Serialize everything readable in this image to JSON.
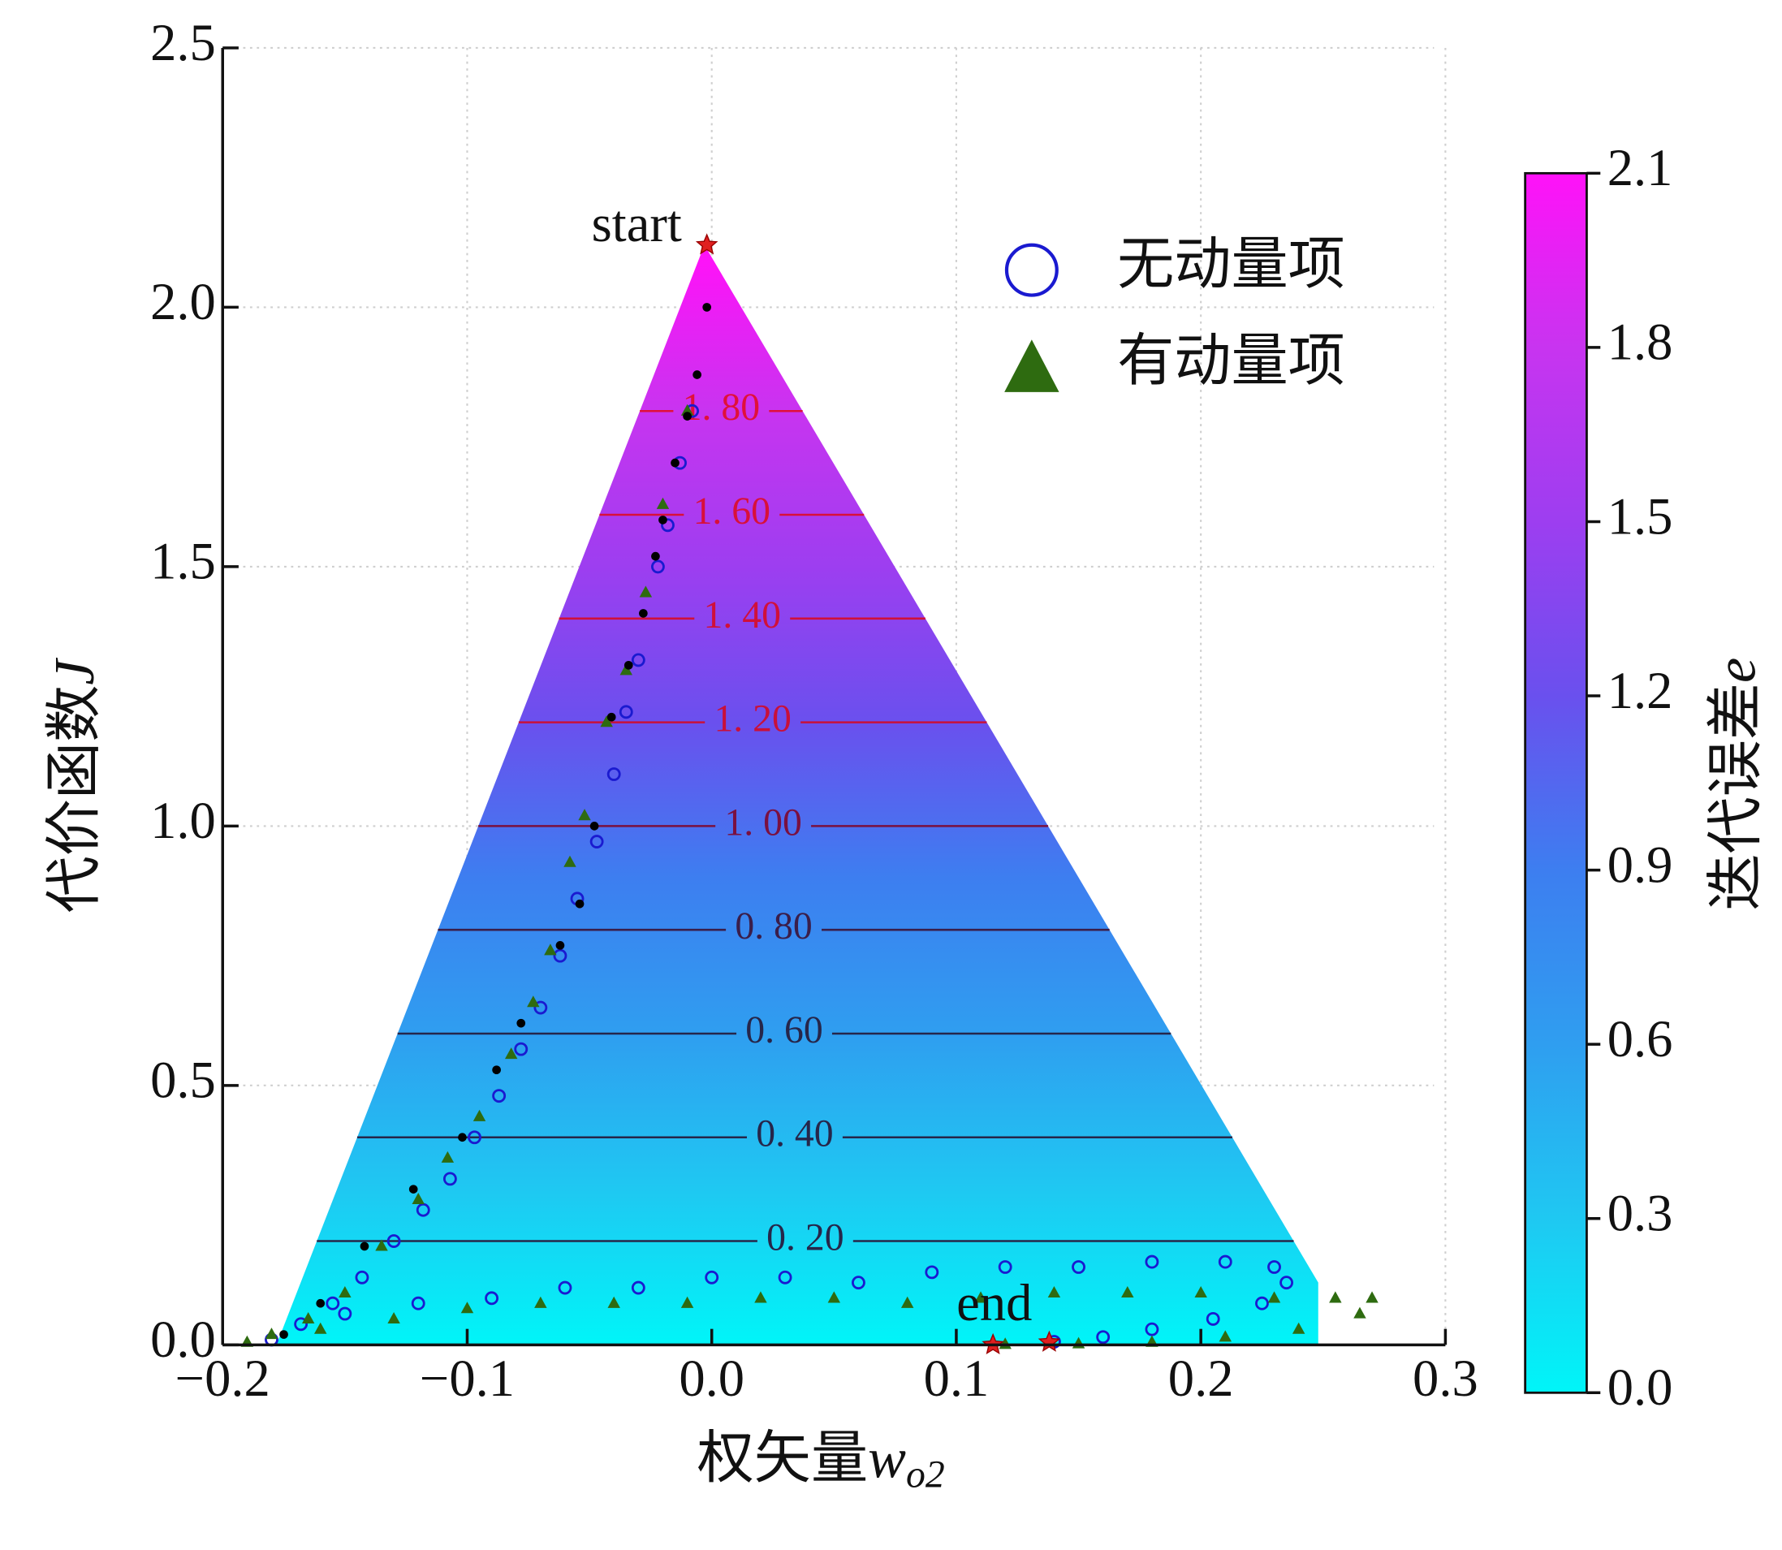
{
  "chart_data": {
    "type": "contour-trajectory",
    "xlabel": {
      "text": "权矢量",
      "var": "w",
      "sub": "o2"
    },
    "ylabel": {
      "text": "代价函数",
      "var": "J"
    },
    "xlim": [
      -0.2,
      0.3
    ],
    "xticks": [
      {
        "value": -0.2,
        "label": "−0.2"
      },
      {
        "value": -0.1,
        "label": "−0.1"
      },
      {
        "value": 0,
        "label": "0.0"
      },
      0.1,
      0.2,
      0.3
    ],
    "ylim": [
      0,
      2.5
    ],
    "yticks": [
      {
        "value": 0,
        "label": "0.0"
      },
      0.5,
      {
        "value": 1,
        "label": "1.0"
      },
      1.5,
      {
        "value": 2,
        "label": "2.0"
      },
      2.5
    ],
    "grid": true,
    "legend": "upper right",
    "surface": {
      "x": [
        -0.003,
        0.248,
        0.248,
        -0.178
      ],
      "y": [
        2.12,
        0.12,
        0,
        0
      ]
    },
    "contour_levels": [
      {
        "value": 0.2,
        "label": "0. 20",
        "color": "#26264a"
      },
      {
        "value": 0.4,
        "label": "0. 40",
        "color": "#26264a"
      },
      {
        "value": 0.6,
        "label": "0. 60",
        "color": "#26264a"
      },
      {
        "value": 0.8,
        "label": "0. 80",
        "color": "#3a1e4a"
      },
      {
        "value": 1.0,
        "label": "1. 00",
        "color": "#7a1040"
      },
      {
        "value": 1.2,
        "label": "1. 20",
        "color": "#c8103a"
      },
      {
        "value": 1.4,
        "label": "1. 40",
        "color": "#d0103a"
      },
      {
        "value": 1.6,
        "label": "1. 60",
        "color": "#d8103a"
      },
      {
        "value": 1.8,
        "label": "1. 80",
        "color": "#e0103a"
      }
    ],
    "colorbar": {
      "label": {
        "text": "迭代误差",
        "var": "e"
      },
      "lim": [
        0,
        2.1
      ],
      "ticks": [
        {
          "value": 0,
          "label": "0.0"
        },
        0.3,
        0.6,
        0.9,
        1.2,
        1.5,
        1.8,
        2.1
      ],
      "colormap": [
        "#00f5f8",
        "#1fc8f2",
        "#2f9ef0",
        "#3d7ef0",
        "#6a50ee",
        "#9d3ef0",
        "#c834f0",
        "#ff12f8"
      ]
    },
    "series": [
      {
        "name": "无动量项",
        "marker": "circle",
        "color": "#1a1ad0",
        "x": [
          -0.008,
          -0.013,
          -0.018,
          -0.022,
          -0.03,
          -0.035,
          -0.04,
          -0.047,
          -0.055,
          -0.062,
          -0.07,
          -0.078,
          -0.087,
          -0.097,
          -0.107,
          -0.118,
          -0.13,
          -0.143,
          -0.155,
          -0.168,
          -0.18,
          -0.15,
          -0.12,
          -0.09,
          -0.06,
          -0.03,
          0.0,
          0.03,
          0.06,
          0.09,
          0.12,
          0.15,
          0.18,
          0.21,
          0.23,
          0.235,
          0.225,
          0.205,
          0.18,
          0.16,
          0.14
        ],
        "values": [
          1.8,
          1.7,
          1.58,
          1.5,
          1.32,
          1.22,
          1.1,
          0.97,
          0.86,
          0.75,
          0.65,
          0.57,
          0.48,
          0.4,
          0.32,
          0.26,
          0.2,
          0.13,
          0.08,
          0.04,
          0.01,
          0.06,
          0.08,
          0.09,
          0.11,
          0.11,
          0.13,
          0.13,
          0.12,
          0.14,
          0.15,
          0.15,
          0.16,
          0.16,
          0.15,
          0.12,
          0.08,
          0.05,
          0.03,
          0.015,
          0.006
        ]
      },
      {
        "name": "有动量项",
        "marker": "triangle",
        "color": "#2e6b10",
        "x": [
          -0.01,
          -0.02,
          -0.027,
          -0.035,
          -0.043,
          -0.052,
          -0.058,
          -0.066,
          -0.073,
          -0.082,
          -0.095,
          -0.108,
          -0.12,
          -0.135,
          -0.15,
          -0.165,
          -0.18,
          -0.19,
          -0.16,
          -0.13,
          -0.1,
          -0.07,
          -0.04,
          -0.01,
          0.02,
          0.05,
          0.08,
          0.11,
          0.14,
          0.17,
          0.2,
          0.23,
          0.255,
          0.27,
          0.265,
          0.24,
          0.21,
          0.18,
          0.15,
          0.12
        ],
        "values": [
          1.8,
          1.62,
          1.45,
          1.3,
          1.2,
          1.02,
          0.93,
          0.76,
          0.66,
          0.56,
          0.44,
          0.36,
          0.28,
          0.19,
          0.1,
          0.05,
          0.02,
          0.005,
          0.03,
          0.05,
          0.07,
          0.08,
          0.08,
          0.08,
          0.09,
          0.09,
          0.08,
          0.09,
          0.1,
          0.1,
          0.1,
          0.09,
          0.09,
          0.09,
          0.06,
          0.03,
          0.015,
          0.005,
          0.002,
          0.001
        ]
      },
      {
        "marker": "dot",
        "color": "#000000",
        "x": [
          -0.002,
          -0.006,
          -0.01,
          -0.015,
          -0.02,
          -0.023,
          -0.028,
          -0.034,
          -0.041,
          -0.048,
          -0.054,
          -0.062,
          -0.078,
          -0.088,
          -0.102,
          -0.122,
          -0.142,
          -0.16,
          -0.175
        ],
        "values": [
          2.0,
          1.87,
          1.79,
          1.7,
          1.59,
          1.52,
          1.41,
          1.31,
          1.21,
          1.0,
          0.85,
          0.77,
          0.62,
          0.53,
          0.4,
          0.3,
          0.19,
          0.08,
          0.02
        ]
      }
    ],
    "annotations": [
      {
        "text": "start",
        "color": "#e02020",
        "x": [
          -0.002
        ],
        "y": [
          2.12
        ]
      },
      {
        "text": "end",
        "color": "#e02020",
        "x": [
          0.115,
          0.138
        ],
        "y": [
          0,
          0.005
        ]
      }
    ]
  }
}
